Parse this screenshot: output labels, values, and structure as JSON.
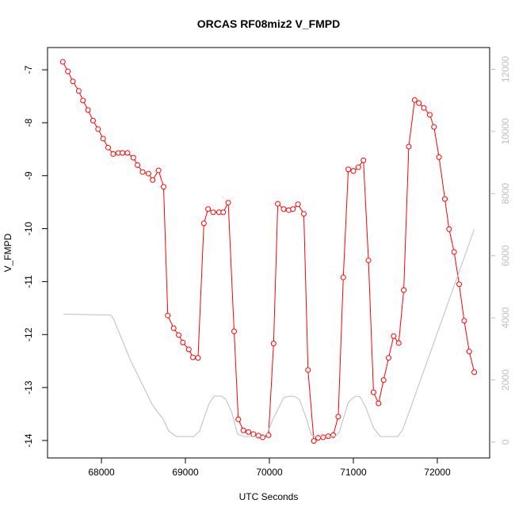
{
  "chart_data": {
    "type": "line",
    "title": "ORCAS RF08miz2 V_FMPD",
    "x_label": "UTC Seconds",
    "y_label": "V_FMPD",
    "xlim": [
      67358,
      72623
    ],
    "xticks": [
      68000,
      69000,
      70000,
      71000,
      72000
    ],
    "ylim": [
      -14.33,
      -6.58
    ],
    "yticks": [
      -7,
      -8,
      -9,
      -10,
      -11,
      -12,
      -13,
      -14
    ],
    "y2lim": [
      -510,
      12700
    ],
    "y2ticks": [
      0,
      2000,
      4000,
      6000,
      8000,
      10000,
      12000
    ],
    "y2_color": "#bebebe",
    "series": [
      {
        "color": "#ff0000",
        "markers": true,
        "x": [
          67540,
          67600,
          67660,
          67730,
          67780,
          67840,
          67900,
          67960,
          68020,
          68080,
          68140,
          68200,
          68250,
          68310,
          68380,
          68430,
          68490,
          68560,
          68610,
          68680,
          68740,
          68790,
          68860,
          68920,
          68970,
          69040,
          69090,
          69150,
          69220,
          69270,
          69330,
          69400,
          69450,
          69510,
          69580,
          69630,
          69690,
          69750,
          69810,
          69870,
          69920,
          69990,
          70050,
          70100,
          70170,
          70230,
          70280,
          70340,
          70410,
          70460,
          70530,
          70580,
          70640,
          70700,
          70760,
          70820,
          70880,
          70940,
          71000,
          71060,
          71120,
          71180,
          71240,
          71300,
          71360,
          71420,
          71480,
          71540,
          71600,
          71660,
          71730,
          71780,
          71840,
          71910,
          71960,
          72020,
          72090,
          72140,
          72200,
          72260,
          72320,
          72380,
          72440
        ],
        "values": [
          -6.85,
          -7.03,
          -7.22,
          -7.4,
          -7.58,
          -7.76,
          -7.96,
          -8.12,
          -8.3,
          -8.47,
          -8.59,
          -8.57,
          -8.57,
          -8.57,
          -8.66,
          -8.8,
          -8.93,
          -8.96,
          -9.08,
          -8.9,
          -9.21,
          -11.64,
          -11.88,
          -12.01,
          -12.15,
          -12.28,
          -12.43,
          -12.44,
          -9.9,
          -9.63,
          -9.69,
          -9.69,
          -9.69,
          -9.51,
          -11.94,
          -13.6,
          -13.81,
          -13.84,
          -13.88,
          -13.91,
          -13.94,
          -13.9,
          -12.17,
          -9.53,
          -9.63,
          -9.65,
          -9.63,
          -9.54,
          -9.72,
          -12.67,
          -14.01,
          -13.95,
          -13.94,
          -13.92,
          -13.9,
          -13.55,
          -10.92,
          -8.88,
          -8.91,
          -8.84,
          -8.71,
          -10.6,
          -13.09,
          -13.3,
          -12.86,
          -12.44,
          -12.03,
          -12.16,
          -11.16,
          -8.45,
          -7.57,
          -7.63,
          -7.72,
          -7.85,
          -8.08,
          -8.65,
          -9.44,
          -10.01,
          -10.44,
          -11.05,
          -11.74,
          -12.32,
          -12.71
        ]
      },
      {
        "color": "#bebebe",
        "markers": false,
        "axis": "y2",
        "x": [
          67550,
          68110,
          68140,
          68350,
          68610,
          68740,
          68800,
          68890,
          69100,
          69170,
          69280,
          69340,
          69430,
          69480,
          69550,
          69620,
          69700,
          69910,
          69970,
          70040,
          70170,
          70240,
          70310,
          70360,
          70430,
          70500,
          70570,
          70780,
          70830,
          70940,
          71020,
          71080,
          71150,
          71240,
          71320,
          71530,
          71590,
          72440
        ],
        "values": [
          4120,
          4090,
          3990,
          2610,
          1180,
          720,
          360,
          180,
          180,
          360,
          1230,
          1480,
          1480,
          1380,
          970,
          260,
          180,
          180,
          260,
          720,
          1430,
          1480,
          1460,
          1360,
          840,
          230,
          180,
          180,
          310,
          1280,
          1480,
          1460,
          1100,
          460,
          180,
          180,
          410,
          6850
        ]
      }
    ]
  }
}
